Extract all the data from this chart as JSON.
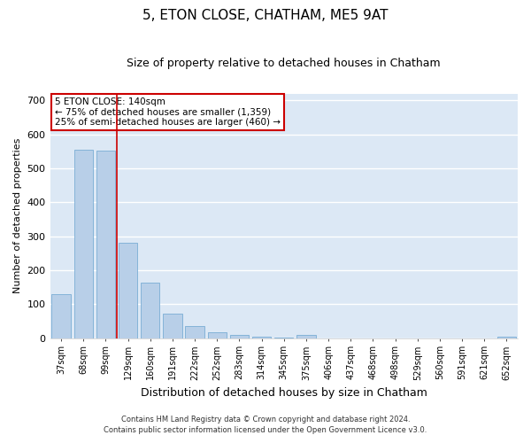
{
  "title": "5, ETON CLOSE, CHATHAM, ME5 9AT",
  "subtitle": "Size of property relative to detached houses in Chatham",
  "xlabel": "Distribution of detached houses by size in Chatham",
  "ylabel": "Number of detached properties",
  "categories": [
    "37sqm",
    "68sqm",
    "99sqm",
    "129sqm",
    "160sqm",
    "191sqm",
    "222sqm",
    "252sqm",
    "283sqm",
    "314sqm",
    "345sqm",
    "375sqm",
    "406sqm",
    "437sqm",
    "468sqm",
    "498sqm",
    "529sqm",
    "560sqm",
    "591sqm",
    "621sqm",
    "652sqm"
  ],
  "values": [
    128,
    555,
    553,
    281,
    163,
    72,
    35,
    18,
    8,
    4,
    2,
    10,
    0,
    0,
    0,
    0,
    0,
    0,
    0,
    0,
    5
  ],
  "bar_color": "#b8cfe8",
  "bar_edge_color": "#7aadd4",
  "background_color": "#dce8f5",
  "grid_color": "#ffffff",
  "vline_color": "#cc0000",
  "annotation_text": "5 ETON CLOSE: 140sqm\n← 75% of detached houses are smaller (1,359)\n25% of semi-detached houses are larger (460) →",
  "annotation_box_color": "#ffffff",
  "annotation_box_edge": "#cc0000",
  "footnote1": "Contains HM Land Registry data © Crown copyright and database right 2024.",
  "footnote2": "Contains public sector information licensed under the Open Government Licence v3.0.",
  "ylim": [
    0,
    720
  ],
  "title_fontsize": 11,
  "subtitle_fontsize": 9,
  "fig_bg": "#ffffff"
}
